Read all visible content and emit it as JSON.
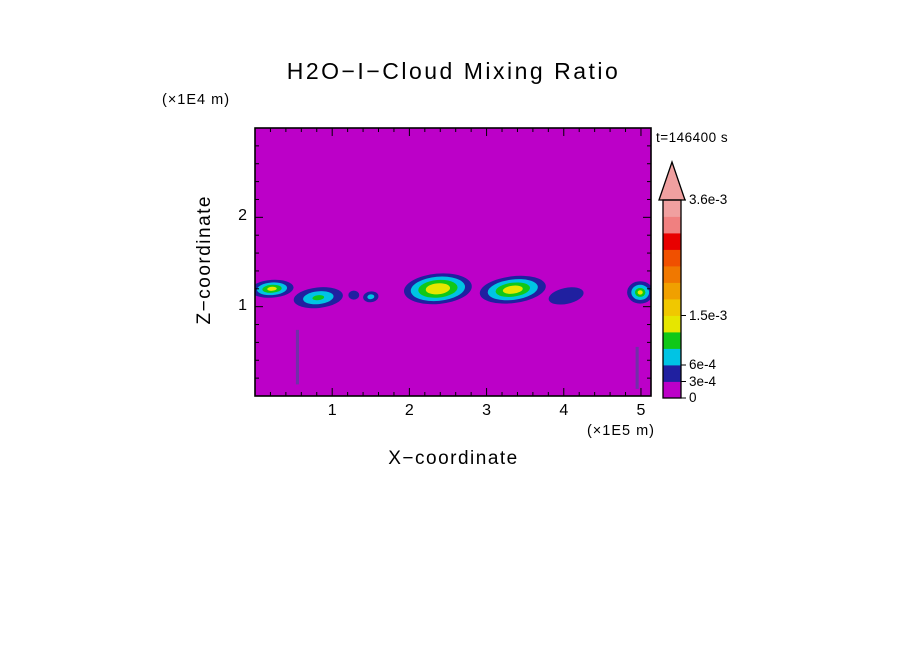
{
  "title": "H2O−I−Cloud Mixing Ratio",
  "time_label": "t=146400 s",
  "x_axis": {
    "label": "X−coordinate",
    "unit": "(×1E5 m)",
    "ticks": [
      1,
      2,
      3,
      4,
      5
    ],
    "minor_step": 0.2
  },
  "y_axis": {
    "label": "Z−coordinate",
    "unit": "(×1E4 m)",
    "ticks": [
      1,
      2
    ],
    "minor_step": 0.2
  },
  "colorbar": {
    "tick_labels": [
      {
        "label": "3.6e-3",
        "level": 12
      },
      {
        "label": "1.5e-3",
        "level": 5
      },
      {
        "label": "6e-4",
        "level": 2
      },
      {
        "label": "3e-4",
        "level": 1
      },
      {
        "label": "0",
        "level": 0
      }
    ]
  },
  "chart_data": {
    "type": "heatmap",
    "title": "H2O-I-Cloud Mixing Ratio",
    "xlabel": "X-coordinate (×1E5 m)",
    "ylabel": "Z-coordinate (×1E4 m)",
    "time_annotation": "t=146400 s",
    "x_range": [
      0,
      5.13
    ],
    "z_range": [
      0,
      3.0
    ],
    "x_ticks": [
      1,
      2,
      3,
      4,
      5
    ],
    "z_ticks": [
      1,
      2
    ],
    "grid": false,
    "background_value": 0,
    "background_color": "#BC00C8",
    "contour_levels": [
      0,
      0.0003,
      0.0006,
      0.0009,
      0.0012,
      0.0015,
      0.0018,
      0.0021,
      0.0024,
      0.0027,
      0.003,
      0.0033,
      0.0036
    ],
    "level_colors": [
      "#BC00C8",
      "#2020A0",
      "#00C4E4",
      "#10C818",
      "#E6E600",
      "#F0C800",
      "#F0A000",
      "#F07800",
      "#F05000",
      "#E80000",
      "#F08080",
      "#F0A0A0"
    ],
    "overflow_color": "#F0A0A0",
    "cloud_features": [
      {
        "x": 0.22,
        "z": 1.2,
        "rx": 0.28,
        "rz": 0.1,
        "rot": -4,
        "peak_value": 0.0012,
        "layers": [
          {
            "level": 1,
            "scale": 1
          },
          {
            "level": 2,
            "scale": 0.7
          },
          {
            "level": 3,
            "scale": 0.45
          },
          {
            "level": 4,
            "scale": 0.22
          }
        ]
      },
      {
        "x": 0.82,
        "z": 1.1,
        "rx": 0.32,
        "rz": 0.115,
        "rot": -6,
        "peak_value": 0.0009,
        "layers": [
          {
            "level": 1,
            "scale": 1
          },
          {
            "level": 2,
            "scale": 0.62
          },
          {
            "level": 3,
            "scale": 0.24
          }
        ]
      },
      {
        "x": 1.28,
        "z": 1.13,
        "rx": 0.07,
        "rz": 0.05,
        "rot": 0,
        "peak_value": 0.0003,
        "layers": [
          {
            "level": 1,
            "scale": 1
          }
        ]
      },
      {
        "x": 1.5,
        "z": 1.11,
        "rx": 0.1,
        "rz": 0.06,
        "rot": -8,
        "peak_value": 0.0006,
        "layers": [
          {
            "level": 1,
            "scale": 1
          },
          {
            "level": 2,
            "scale": 0.45
          }
        ]
      },
      {
        "x": 2.37,
        "z": 1.2,
        "rx": 0.44,
        "rz": 0.17,
        "rot": -5,
        "peak_value": 0.0015,
        "layers": [
          {
            "level": 1,
            "scale": 1
          },
          {
            "level": 2,
            "scale": 0.8
          },
          {
            "level": 3,
            "scale": 0.58
          },
          {
            "level": 4,
            "scale": 0.36
          }
        ]
      },
      {
        "x": 3.34,
        "z": 1.19,
        "rx": 0.43,
        "rz": 0.15,
        "rot": -7,
        "peak_value": 0.0015,
        "layers": [
          {
            "level": 1,
            "scale": 1
          },
          {
            "level": 2,
            "scale": 0.76
          },
          {
            "level": 3,
            "scale": 0.52
          },
          {
            "level": 4,
            "scale": 0.3
          }
        ]
      },
      {
        "x": 4.03,
        "z": 1.12,
        "rx": 0.23,
        "rz": 0.09,
        "rot": -12,
        "peak_value": 0.0003,
        "layers": [
          {
            "level": 1,
            "scale": 1
          }
        ]
      },
      {
        "x": 4.99,
        "z": 1.16,
        "rx": 0.17,
        "rz": 0.125,
        "rot": 0,
        "peak_value": 0.0012,
        "layers": [
          {
            "level": 1,
            "scale": 1
          },
          {
            "level": 2,
            "scale": 0.68
          },
          {
            "level": 3,
            "scale": 0.4
          },
          {
            "level": 4,
            "scale": 0.2
          }
        ]
      }
    ],
    "fall_streaks": [
      {
        "x": 0.55,
        "z_top": 0.74,
        "z_bottom": 0.13,
        "width": 0.04,
        "color": "#7030A8"
      },
      {
        "x": 4.95,
        "z_top": 0.55,
        "z_bottom": 0.08,
        "width": 0.04,
        "color": "#7030A8"
      }
    ]
  }
}
